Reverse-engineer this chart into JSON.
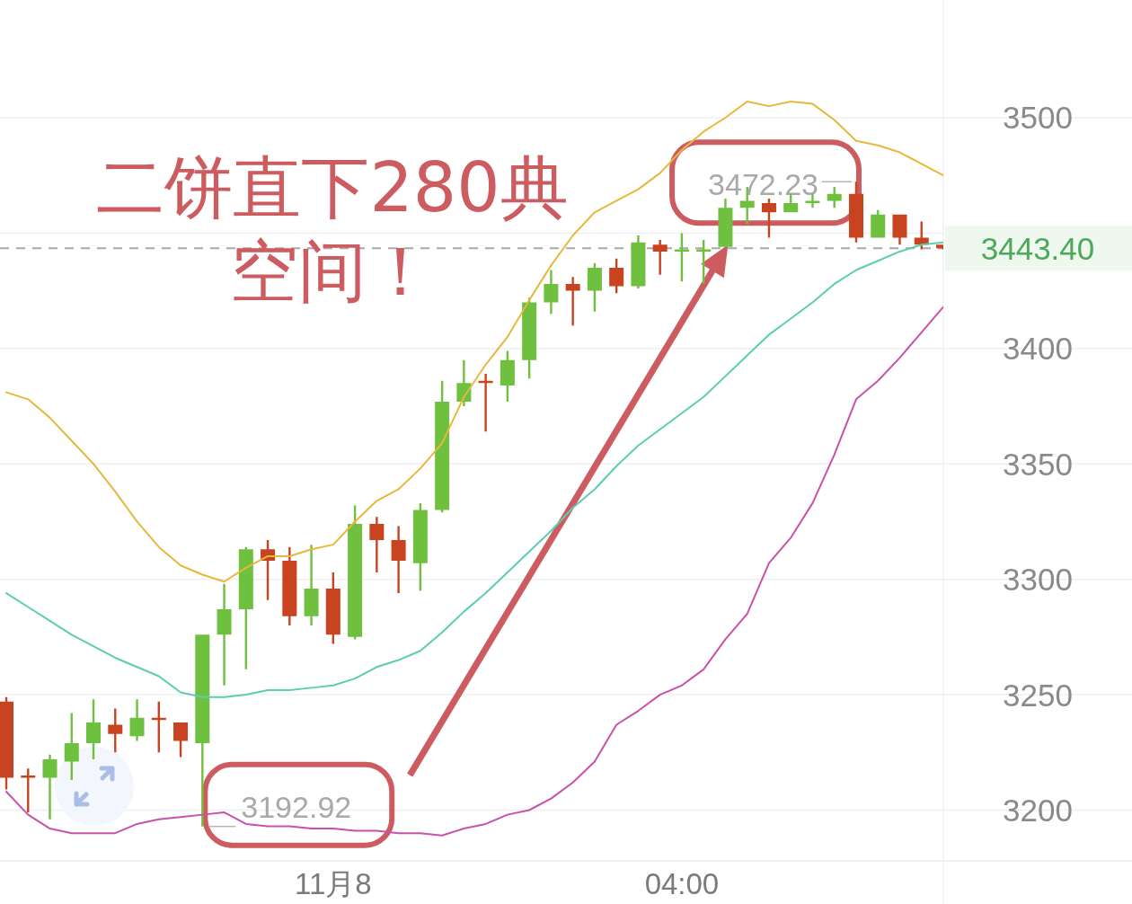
{
  "chart_data": {
    "type": "candlestick",
    "categories": [
      null,
      null,
      null,
      null,
      null,
      null,
      null,
      null,
      null,
      null,
      null,
      null,
      null,
      null,
      null,
      "11月8",
      null,
      null,
      null,
      null,
      null,
      null,
      null,
      null,
      null,
      null,
      null,
      null,
      null,
      null,
      null,
      "04:00",
      null,
      null,
      null,
      null,
      null,
      null,
      null,
      null,
      null,
      null,
      null,
      null
    ],
    "ohlc": [
      [
        3247,
        3249,
        3209,
        3214
      ],
      [
        3215,
        3218,
        3199,
        3214
      ],
      [
        3214,
        3224,
        3196,
        3222
      ],
      [
        3221,
        3242,
        3213,
        3229
      ],
      [
        3229,
        3248,
        3222,
        3238
      ],
      [
        3237,
        3244,
        3225,
        3233
      ],
      [
        3232,
        3248,
        3230,
        3240
      ],
      [
        3240,
        3247,
        3225,
        3239
      ],
      [
        3238,
        3238,
        3223,
        3230
      ],
      [
        3229,
        3276,
        3192.92,
        3276
      ],
      [
        3276,
        3298,
        3254,
        3287
      ],
      [
        3287,
        3314,
        3261,
        3313
      ],
      [
        3313,
        3317,
        3291,
        3308
      ],
      [
        3308,
        3314,
        3280,
        3284
      ],
      [
        3284,
        3315,
        3280,
        3296
      ],
      [
        3296,
        3303,
        3272,
        3276
      ],
      [
        3275,
        3332,
        3274,
        3324
      ],
      [
        3324,
        3327,
        3303,
        3317
      ],
      [
        3317,
        3323,
        3294,
        3308
      ],
      [
        3307,
        3333,
        3295,
        3330
      ],
      [
        3330,
        3386,
        3329,
        3377
      ],
      [
        3377,
        3395,
        3375,
        3385
      ],
      [
        3386,
        3389,
        3364,
        3385
      ],
      [
        3384,
        3399,
        3377,
        3395
      ],
      [
        3395,
        3422,
        3387,
        3420
      ],
      [
        3420,
        3434,
        3415,
        3428
      ],
      [
        3428,
        3431,
        3410,
        3425
      ],
      [
        3425,
        3437,
        3416,
        3435
      ],
      [
        3435,
        3439,
        3424,
        3427
      ],
      [
        3427,
        3449,
        3426,
        3446
      ],
      [
        3445,
        3447,
        3432,
        3442
      ],
      [
        3442,
        3450,
        3429,
        3443
      ],
      [
        3442,
        3447,
        3428,
        3443
      ],
      [
        3444,
        3465,
        3444,
        3461
      ],
      [
        3461,
        3470,
        3454,
        3464
      ],
      [
        3463,
        3465,
        3448,
        3459
      ],
      [
        3459,
        3467,
        3459,
        3463
      ],
      [
        3463,
        3467,
        3461,
        3464
      ],
      [
        3464,
        3470,
        3461,
        3467
      ],
      [
        3467,
        3472.23,
        3446,
        3448
      ],
      [
        3448,
        3460,
        3448,
        3458
      ],
      [
        3458,
        3458,
        3445,
        3448
      ],
      [
        3448,
        3455,
        3443,
        3445
      ],
      [
        3445,
        3445,
        3443,
        3443.4
      ]
    ],
    "colors": [
      "#c8431f",
      "#c8431f",
      "#70c040",
      "#70c040",
      "#70c040",
      "#c8431f",
      "#70c040",
      "#c8431f",
      "#c8431f",
      "#70c040",
      "#70c040",
      "#70c040",
      "#c8431f",
      "#c8431f",
      "#70c040",
      "#c8431f",
      "#70c040",
      "#c8431f",
      "#c8431f",
      "#70c040",
      "#70c040",
      "#70c040",
      "#c8431f",
      "#70c040",
      "#70c040",
      "#70c040",
      "#c8431f",
      "#70c040",
      "#c8431f",
      "#70c040",
      "#c8431f",
      "#70c040",
      "#70c040",
      "#70c040",
      "#70c040",
      "#c8431f",
      "#70c040",
      "#70c040",
      "#70c040",
      "#c8431f",
      "#70c040",
      "#c8431f",
      "#c8431f",
      "#c8431f"
    ],
    "series": [
      {
        "type": "line",
        "color": "#e6b83c",
        "values": [
          3381,
          3378,
          3370,
          3360,
          3350,
          3338,
          3325,
          3314,
          3306,
          3302,
          3299,
          3305,
          3310,
          3310,
          3313,
          3315,
          3325,
          3334,
          3339,
          3348,
          3359,
          3379,
          3393,
          3405,
          3421,
          3436,
          3449,
          3459,
          3464,
          3469,
          3476,
          3486,
          3494,
          3500,
          3507,
          3505,
          3507,
          3506,
          3499,
          3490,
          3488,
          3485,
          3480,
          3475
        ]
      },
      {
        "type": "line",
        "color": "#5ccdb2",
        "values": [
          3294,
          3288,
          3282,
          3276,
          3271,
          3266,
          3262,
          3258,
          3251,
          3249,
          3249,
          3250,
          3252,
          3252,
          3253,
          3254,
          3257,
          3262,
          3265,
          3269,
          3277,
          3286,
          3294,
          3303,
          3312,
          3321,
          3331,
          3339,
          3349,
          3358,
          3365,
          3372,
          3379,
          3388,
          3397,
          3406,
          3413,
          3420,
          3428,
          3434,
          3438,
          3442,
          3445,
          3446
        ]
      },
      {
        "type": "line",
        "color": "#c852a8",
        "values": [
          3208,
          3198,
          3192,
          3190,
          3190,
          3190,
          3194,
          3196,
          3197,
          3198,
          3199,
          3194,
          3193,
          3193,
          3192,
          3192,
          3191,
          3191,
          3190,
          3190,
          3189,
          3192,
          3194,
          3198,
          3200,
          3205,
          3212,
          3221,
          3237,
          3243,
          3250,
          3254,
          3261,
          3274,
          3285,
          3307,
          3318,
          3333,
          3354,
          3378,
          3386,
          3396,
          3407,
          3418
        ]
      }
    ],
    "ylim": [
      3178,
      3551
    ],
    "yticks": [
      3200,
      3250,
      3300,
      3350,
      3400,
      {
        "value": 3450,
        "label": null
      },
      3500
    ],
    "grid": "y",
    "ref_lines": [
      {
        "axis": "y",
        "value": 3443.4,
        "label": "3443.40",
        "color": "#a8a8a8",
        "line_style": "dashed"
      }
    ],
    "annotations": [
      "二饼直下280典空间！",
      "3472.23",
      "3192.92"
    ]
  }
}
